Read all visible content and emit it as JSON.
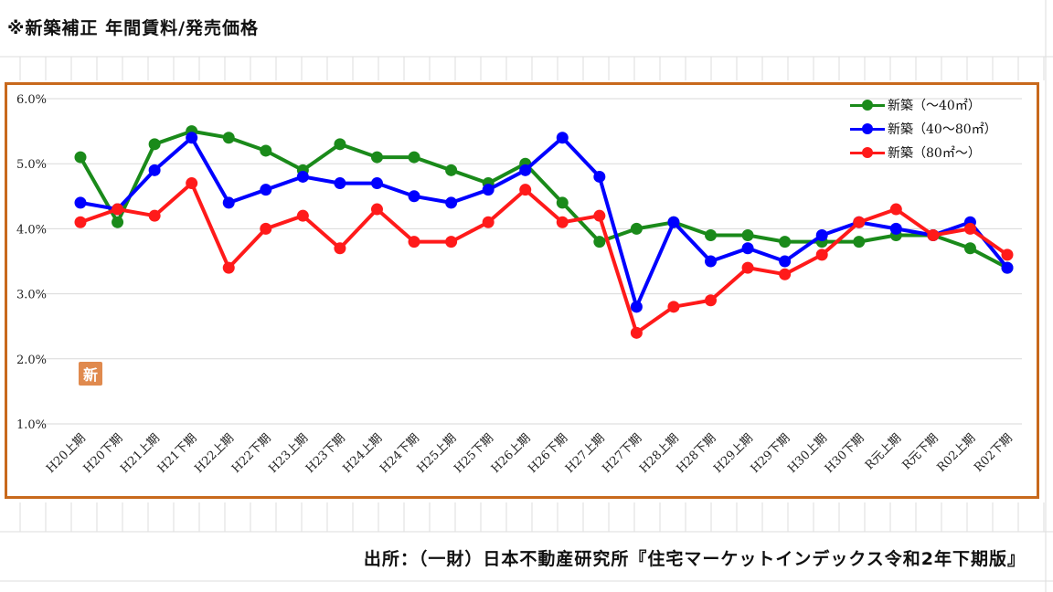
{
  "page_title": "※新築補正 年間賃料/発売価格",
  "source_note": "出所：（一財）日本不動産研究所『住宅マーケットインデックス令和2年下期版』",
  "badge": "新",
  "chart_data": {
    "type": "line",
    "categories": [
      "H20上期",
      "H20下期",
      "H21上期",
      "H21下期",
      "H22上期",
      "H22下期",
      "H23上期",
      "H23下期",
      "H24上期",
      "H24下期",
      "H25上期",
      "H25下期",
      "H26上期",
      "H26下期",
      "H27上期",
      "H27下期",
      "H28上期",
      "H28下期",
      "H29上期",
      "H29下期",
      "H30上期",
      "H30下期",
      "R元上期",
      "R元下期",
      "R02上期",
      "R02下期"
    ],
    "y_ticks": [
      "1.0%",
      "2.0%",
      "3.0%",
      "4.0%",
      "5.0%",
      "6.0%"
    ],
    "ylim": [
      1.0,
      6.0
    ],
    "y_unit": "%",
    "grid": "horizontal",
    "legend_position": "top-right",
    "series": [
      {
        "name": "新築（～40㎡）",
        "color": "#1a8a1a",
        "values": [
          5.1,
          4.1,
          5.3,
          5.5,
          5.4,
          5.2,
          4.9,
          5.3,
          5.1,
          5.1,
          4.9,
          4.7,
          5.0,
          4.4,
          3.8,
          4.0,
          4.1,
          3.9,
          3.9,
          3.8,
          3.8,
          3.8,
          3.9,
          3.9,
          3.7,
          3.4
        ]
      },
      {
        "name": "新築（40～80㎡）",
        "color": "#0000ff",
        "values": [
          4.4,
          4.3,
          4.9,
          5.4,
          4.4,
          4.6,
          4.8,
          4.7,
          4.7,
          4.5,
          4.4,
          4.6,
          4.9,
          5.4,
          4.8,
          2.8,
          4.1,
          3.5,
          3.7,
          3.5,
          3.9,
          4.1,
          4.0,
          3.9,
          4.1,
          3.4
        ]
      },
      {
        "name": "新築（80㎡～）",
        "color": "#ff1a1a",
        "values": [
          4.1,
          4.3,
          4.2,
          4.7,
          3.4,
          4.0,
          4.2,
          3.7,
          4.3,
          3.8,
          3.8,
          4.1,
          4.6,
          4.1,
          4.2,
          2.4,
          2.8,
          2.9,
          3.4,
          3.3,
          3.6,
          4.1,
          4.3,
          3.9,
          4.0,
          3.6
        ]
      }
    ]
  }
}
